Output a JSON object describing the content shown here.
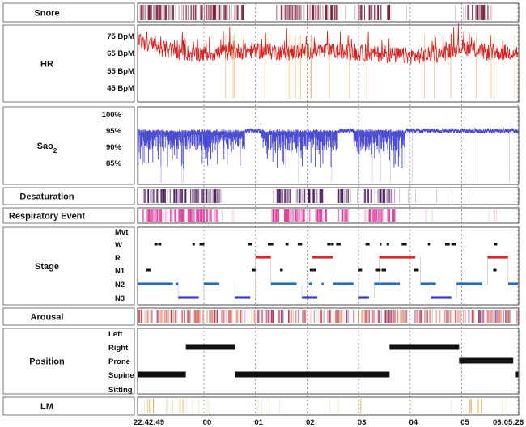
{
  "chart_data": {
    "type": "polysomnogram",
    "time_axis": {
      "start_label": "22:42:49",
      "end_label": "06:05:26",
      "hour_labels": [
        "00",
        "01",
        "02",
        "03",
        "04",
        "05"
      ],
      "start_hour": 22.7136,
      "end_hour": 30.0906,
      "hour_positions": [
        24,
        25,
        26,
        27,
        28,
        29
      ]
    },
    "channels": [
      {
        "id": "snore",
        "label": "Snore",
        "type": "event-raster",
        "color": "#7a1f3a",
        "dense_segments": [
          [
            22.72,
            24.8
          ],
          [
            25.4,
            26.6
          ],
          [
            26.9,
            27.6
          ],
          [
            29.1,
            29.6
          ]
        ]
      },
      {
        "id": "hr",
        "label": "HR",
        "type": "line",
        "color": "#d42020",
        "unit": "BpM",
        "y_ticks": [
          "75 BpM",
          "65 BpM",
          "55 BpM",
          "45 BpM"
        ],
        "y_tick_values": [
          75,
          65,
          55,
          45
        ],
        "ylim": [
          42,
          80
        ],
        "series": [
          {
            "t": 22.72,
            "v": 73
          },
          {
            "t": 23.2,
            "v": 69
          },
          {
            "t": 23.8,
            "v": 66
          },
          {
            "t": 24.4,
            "v": 67
          },
          {
            "t": 25.0,
            "v": 68
          },
          {
            "t": 25.6,
            "v": 67
          },
          {
            "t": 26.2,
            "v": 68
          },
          {
            "t": 26.8,
            "v": 67
          },
          {
            "t": 27.4,
            "v": 66
          },
          {
            "t": 28.0,
            "v": 65
          },
          {
            "t": 28.6,
            "v": 66
          },
          {
            "t": 29.0,
            "v": 70
          },
          {
            "t": 29.5,
            "v": 67
          },
          {
            "t": 30.09,
            "v": 67
          }
        ]
      },
      {
        "id": "sao2",
        "label": "Sao",
        "label_sub": "2",
        "type": "line",
        "color": "#4a4ad0",
        "unit": "%",
        "y_ticks": [
          "100%",
          "95%",
          "90%",
          "85%"
        ],
        "y_tick_values": [
          100,
          95,
          90,
          85
        ],
        "ylim": [
          82,
          102
        ],
        "baseline": [
          {
            "t": 22.72,
            "v": 96
          },
          {
            "t": 24.0,
            "v": 96
          },
          {
            "t": 25.0,
            "v": 96
          },
          {
            "t": 26.0,
            "v": 96
          },
          {
            "t": 27.0,
            "v": 96.5
          },
          {
            "t": 28.0,
            "v": 97
          },
          {
            "t": 29.0,
            "v": 96.5
          },
          {
            "t": 30.09,
            "v": 96.5
          }
        ],
        "desaturation_segments": [
          [
            22.72,
            24.8
          ],
          [
            25.1,
            26.6
          ],
          [
            26.9,
            27.9
          ]
        ]
      },
      {
        "id": "desat",
        "label": "Desaturation",
        "type": "event-raster",
        "color": "#4a1a5a",
        "dense_segments": [
          [
            22.8,
            24.3
          ],
          [
            25.3,
            26.3
          ],
          [
            26.6,
            26.8
          ],
          [
            27.1,
            27.7
          ]
        ]
      },
      {
        "id": "resp",
        "label": "Respiratory Event",
        "type": "event-raster",
        "color": "#e040a0",
        "dense_segments": [
          [
            22.8,
            24.3
          ],
          [
            25.3,
            26.4
          ],
          [
            26.6,
            26.8
          ],
          [
            27.1,
            27.7
          ]
        ]
      },
      {
        "id": "stage",
        "label": "Stage",
        "type": "hypnogram",
        "levels": [
          "Mvt",
          "W",
          "R",
          "N1",
          "N2",
          "N3"
        ],
        "level_colors": {
          "Mvt": "#111111",
          "W": "#111111",
          "R": "#d42a2a",
          "N1": "#111111",
          "N2": "#2a6ab0",
          "N3": "#3a3ac0"
        },
        "segments": [
          {
            "start": 22.72,
            "end": 23.4,
            "stage": "N2"
          },
          {
            "start": 23.5,
            "end": 23.9,
            "stage": "N3"
          },
          {
            "start": 24.0,
            "end": 24.3,
            "stage": "N2"
          },
          {
            "start": 24.6,
            "end": 24.9,
            "stage": "N3"
          },
          {
            "start": 25.0,
            "end": 25.3,
            "stage": "R"
          },
          {
            "start": 25.3,
            "end": 25.8,
            "stage": "N2"
          },
          {
            "start": 25.9,
            "end": 26.2,
            "stage": "N3"
          },
          {
            "start": 26.1,
            "end": 26.5,
            "stage": "R"
          },
          {
            "start": 26.5,
            "end": 26.9,
            "stage": "N2"
          },
          {
            "start": 27.0,
            "end": 27.2,
            "stage": "N3"
          },
          {
            "start": 27.3,
            "end": 27.8,
            "stage": "N2"
          },
          {
            "start": 27.4,
            "end": 28.1,
            "stage": "R"
          },
          {
            "start": 28.2,
            "end": 28.5,
            "stage": "N2"
          },
          {
            "start": 28.4,
            "end": 28.8,
            "stage": "N3"
          },
          {
            "start": 28.9,
            "end": 29.4,
            "stage": "N2"
          },
          {
            "start": 29.5,
            "end": 29.9,
            "stage": "R"
          },
          {
            "start": 29.9,
            "end": 30.09,
            "stage": "N2"
          }
        ]
      },
      {
        "id": "arousal",
        "label": "Arousal",
        "type": "event-raster",
        "color": "#c85a70",
        "dense_segments": [
          [
            22.72,
            30.09
          ]
        ]
      },
      {
        "id": "position",
        "label": "Position",
        "type": "step",
        "levels": [
          "Left",
          "Right",
          "Prone",
          "Supine",
          "Sitting"
        ],
        "color": "#111111",
        "segments": [
          {
            "start": 22.72,
            "end": 23.65,
            "level": "Supine"
          },
          {
            "start": 23.65,
            "end": 24.6,
            "level": "Right"
          },
          {
            "start": 24.6,
            "end": 27.6,
            "level": "Supine"
          },
          {
            "start": 27.6,
            "end": 28.95,
            "level": "Right"
          },
          {
            "start": 28.95,
            "end": 30.0,
            "level": "Prone"
          },
          {
            "start": 30.05,
            "end": 30.09,
            "level": "Supine"
          }
        ]
      },
      {
        "id": "lm",
        "label": "LM",
        "type": "event-raster",
        "color": "#d0a040",
        "dense_segments": [
          [
            22.8,
            23.6
          ],
          [
            25.5,
            25.6
          ],
          [
            27.0,
            27.1
          ],
          [
            29.1,
            29.4
          ]
        ]
      }
    ]
  }
}
